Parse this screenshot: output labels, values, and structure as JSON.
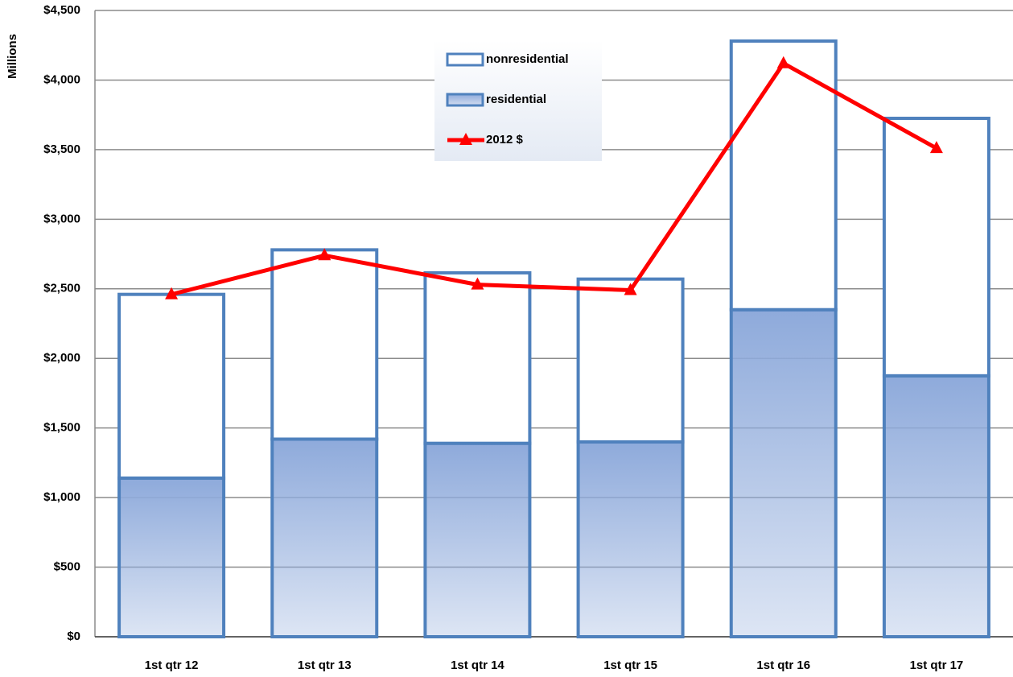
{
  "chart_data": {
    "type": "bar",
    "stacked": true,
    "y_label": "Millions",
    "categories": [
      "1st qtr 12",
      "1st qtr 13",
      "1st qtr 14",
      "1st qtr 15",
      "1st qtr 16",
      "1st qtr 17"
    ],
    "series": [
      {
        "name": "nonresidential",
        "type": "bar",
        "color": "#ffffff",
        "edge_color": "#4f81bd",
        "values": [
          1320,
          1360,
          1225,
          1170,
          1930,
          1850
        ]
      },
      {
        "name": "residential",
        "type": "bar",
        "color": "#8eaadb",
        "edge_color": "#4f81bd",
        "values": [
          1140,
          1420,
          1390,
          1400,
          2350,
          1875
        ]
      },
      {
        "name": "2012 $",
        "type": "line",
        "color": "#ff0000",
        "values": [
          2460,
          2740,
          2530,
          2490,
          4120,
          3510
        ]
      }
    ],
    "ylim": [
      0,
      4500
    ],
    "yticks": [
      {
        "value": 0,
        "label": "$0"
      },
      {
        "value": 500,
        "label": "$500"
      },
      {
        "value": 1000,
        "label": "$1,000"
      },
      {
        "value": 1500,
        "label": "$1,500"
      },
      {
        "value": 2000,
        "label": "$2,000"
      },
      {
        "value": 2500,
        "label": "$2,500"
      },
      {
        "value": 3000,
        "label": "$3,000"
      },
      {
        "value": 3500,
        "label": "$3,500"
      },
      {
        "value": 4000,
        "label": "$4,000"
      },
      {
        "value": 4500,
        "label": "$4,500"
      }
    ],
    "grid": true,
    "legend_position": "top"
  }
}
